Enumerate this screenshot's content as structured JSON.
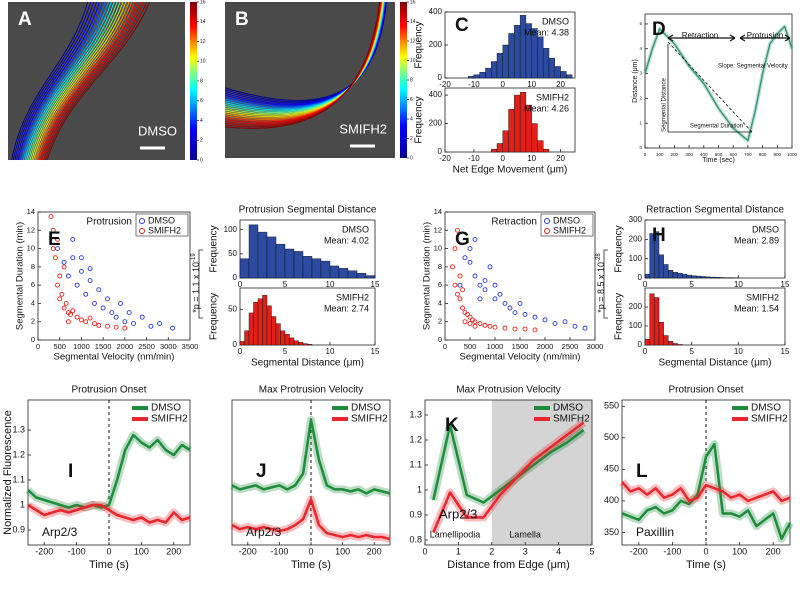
{
  "chart_data": [
    {
      "type": "image",
      "panel": "A",
      "label": "DMSO",
      "clim": [
        0,
        16
      ],
      "cticks": [
        0,
        2,
        4,
        6,
        8,
        10,
        12,
        14,
        16
      ]
    },
    {
      "type": "image",
      "panel": "B",
      "label": "SMIFH2",
      "clim": [
        0,
        16
      ],
      "cticks": [
        0,
        2,
        4,
        6,
        8,
        10,
        12,
        14,
        16
      ]
    },
    {
      "type": "histogram",
      "panel": "C",
      "name": "DMSO",
      "mean": "Mean: 4.38",
      "color": "#2b4aa0",
      "ylabel": "Frequency",
      "bins": [
        -12,
        -10,
        -8,
        -6,
        -4,
        -2,
        0,
        2,
        4,
        6,
        8,
        10,
        12,
        14,
        16,
        18,
        20,
        22,
        24
      ],
      "values": [
        10,
        20,
        35,
        60,
        100,
        150,
        200,
        270,
        320,
        380,
        330,
        300,
        250,
        180,
        120,
        70,
        40,
        20
      ],
      "xlim": [
        -20,
        25
      ],
      "xticks": [
        -20,
        -10,
        0,
        10,
        20
      ],
      "ylim": [
        0,
        400
      ],
      "yticks": [
        0,
        200,
        400
      ]
    },
    {
      "type": "histogram",
      "name": "SMIFH2",
      "mean": "Mean: 4.26",
      "color": "#e0201b",
      "ylabel": "Frequency",
      "xlabel": "Net Edge Movement (μm)",
      "bins": [
        -4,
        -2,
        0,
        2,
        4,
        6,
        8,
        10,
        12,
        14,
        16
      ],
      "values": [
        20,
        60,
        150,
        300,
        400,
        420,
        330,
        200,
        80,
        20
      ],
      "xlim": [
        -20,
        25
      ],
      "xticks": [
        -20,
        -10,
        0,
        10,
        20
      ],
      "ylim": [
        0,
        450
      ],
      "yticks": [
        0,
        200,
        400
      ]
    },
    {
      "type": "line",
      "panel": "D",
      "xlabel": "Time (sec)",
      "ylabel": "Distance (μm)",
      "x": [
        0,
        50,
        100,
        150,
        200,
        300,
        400,
        500,
        600,
        700,
        750,
        800,
        850,
        900,
        950,
        1000
      ],
      "series": [
        {
          "color": "#3a9a7a",
          "values": [
            3,
            4,
            4.8,
            4.5,
            4.2,
            3.3,
            2.6,
            1.6,
            0.8,
            0.3,
            1.5,
            3,
            4.2,
            4.6,
            4.9,
            4
          ]
        }
      ],
      "xlim": [
        0,
        1000
      ],
      "xticks": [
        0,
        100,
        200,
        300,
        400,
        500,
        600,
        700,
        800,
        900,
        1000
      ],
      "ylim": [
        0,
        5.4
      ],
      "yticks": [
        0,
        1,
        2,
        3,
        4,
        5
      ],
      "annotations": [
        "Retraction",
        "Protrusion",
        "Slope: Segmental Velocity",
        "Segmental Distance",
        "Segmental Duration"
      ]
    },
    {
      "type": "scatter",
      "panel": "E",
      "label": "Protrusion",
      "xlabel": "Segmental Velocity (nm/min)",
      "ylabel": "Segmental Duration (min)",
      "xlim": [
        0,
        3500
      ],
      "xticks": [
        0,
        500,
        1000,
        1500,
        2000,
        2500,
        3000,
        3500
      ],
      "ylim": [
        0,
        14
      ],
      "yticks": [
        0,
        2,
        4,
        6,
        8,
        10,
        12,
        14
      ],
      "series": [
        {
          "name": "DMSO",
          "color": "#2a3bd1",
          "x": [
            450,
            600,
            700,
            800,
            900,
            1000,
            1100,
            1200,
            1300,
            1400,
            1500,
            1600,
            1700,
            1800,
            1900,
            2000,
            2100,
            2200,
            2400,
            2600,
            2800,
            3100,
            800,
            1000,
            1200
          ],
          "y": [
            10,
            8.5,
            7,
            9,
            6,
            7.5,
            5,
            6.5,
            4,
            5.5,
            3.5,
            4.5,
            3,
            2.5,
            4,
            2,
            3,
            1.8,
            2.5,
            1.5,
            1.8,
            1.3,
            11,
            9,
            7.8
          ]
        },
        {
          "name": "SMIFH2",
          "color": "#e8241a",
          "x": [
            300,
            350,
            400,
            450,
            500,
            550,
            600,
            650,
            700,
            750,
            800,
            900,
            1000,
            1100,
            1200,
            1300,
            1400,
            1600,
            1800,
            2000,
            350,
            450,
            500,
            600,
            700
          ],
          "y": [
            13.5,
            12,
            9,
            6,
            4.5,
            5,
            3.5,
            4,
            3,
            2.8,
            3.2,
            2.5,
            2.2,
            2,
            2.4,
            1.8,
            1.6,
            1.5,
            1.4,
            1.3,
            10,
            11,
            7,
            8,
            2
          ]
        }
      ]
    },
    {
      "type": "histogram",
      "title": "Protrusion Segmental Distance",
      "name": "DMSO",
      "mean": "Mean: 4.02",
      "color": "#2b4aa0",
      "ylabel": "Frequency",
      "annotation": {
        "text": "*p = 1.1 x 10",
        "exp": "-19"
      },
      "bins": [
        0,
        1,
        2,
        3,
        4,
        5,
        6,
        7,
        8,
        9,
        10,
        11,
        12,
        13,
        14,
        15
      ],
      "values": [
        40,
        110,
        95,
        85,
        70,
        60,
        55,
        45,
        40,
        35,
        25,
        20,
        15,
        10,
        5
      ],
      "xlim": [
        0,
        15
      ],
      "xticks": [
        0,
        5,
        10,
        15
      ],
      "ylim": [
        0,
        120
      ],
      "yticks": [
        0,
        50,
        100
      ]
    },
    {
      "type": "histogram",
      "name": "SMIFH2",
      "mean": "Mean: 2.74",
      "color": "#e0201b",
      "ylabel": "Frequency",
      "xlabel": "Segmental Distance (μm)",
      "bins": [
        0,
        0.5,
        1,
        1.5,
        2,
        2.5,
        3,
        3.5,
        4,
        4.5,
        5,
        5.5,
        6,
        6.5,
        7,
        7.5,
        8
      ],
      "values": [
        5,
        20,
        45,
        60,
        65,
        70,
        55,
        40,
        30,
        20,
        15,
        10,
        6,
        4,
        2,
        1
      ],
      "xlim": [
        0,
        15
      ],
      "xticks": [
        0,
        5,
        10,
        15
      ],
      "ylim": [
        0,
        80
      ],
      "yticks": [
        0,
        50
      ]
    },
    {
      "type": "scatter",
      "panel": "G",
      "label": "Retraction",
      "xlabel": "Segmental Velocity (nm/min)",
      "ylabel": "Segmental Duration (min)",
      "xlim": [
        0,
        3000
      ],
      "xticks": [
        0,
        500,
        1000,
        1500,
        2000,
        2500,
        3000
      ],
      "ylim": [
        0,
        14
      ],
      "yticks": [
        0,
        2,
        4,
        6,
        8,
        10,
        12,
        14
      ],
      "series": [
        {
          "name": "DMSO",
          "color": "#2a3bd1",
          "x": [
            300,
            400,
            500,
            600,
            700,
            800,
            900,
            1000,
            1100,
            1200,
            1300,
            1400,
            1500,
            1600,
            1800,
            2000,
            2200,
            2400,
            2600,
            2800,
            500,
            600,
            800,
            1000,
            700
          ],
          "y": [
            6,
            9,
            8.5,
            7,
            6,
            5.5,
            8,
            4.5,
            5,
            4,
            3.5,
            3,
            4,
            2.8,
            2.5,
            2.2,
            1.8,
            2,
            1.5,
            1.3,
            10,
            11,
            6.5,
            6,
            4.5
          ]
        },
        {
          "name": "SMIFH2",
          "color": "#e8241a",
          "x": [
            150,
            200,
            250,
            300,
            350,
            400,
            450,
            500,
            550,
            600,
            700,
            800,
            900,
            1000,
            1200,
            1400,
            1600,
            1800,
            200,
            250,
            300,
            350,
            400,
            500,
            600
          ],
          "y": [
            8,
            6,
            5,
            4.5,
            3.5,
            3,
            2.8,
            2.5,
            2.2,
            2,
            1.8,
            1.6,
            1.5,
            1.4,
            1.3,
            1.2,
            1.2,
            1.1,
            10,
            12,
            7,
            5.5,
            2,
            1.8,
            1.5
          ]
        }
      ]
    },
    {
      "type": "histogram",
      "panel": "H",
      "title": "Retraction Segmental Distance",
      "name": "DMSO",
      "mean": "Mean: 2.89",
      "color": "#2b4aa0",
      "ylabel": "Frequency",
      "annotation": {
        "text": "*p = 8.5 x 10",
        "exp": "-28"
      },
      "bins": [
        0,
        0.5,
        1,
        1.5,
        2,
        2.5,
        3,
        3.5,
        4,
        4.5,
        5,
        5.5,
        6,
        6.5,
        7,
        7.5,
        8,
        8.5,
        9,
        9.5,
        10
      ],
      "values": [
        20,
        230,
        240,
        120,
        70,
        40,
        30,
        25,
        20,
        15,
        12,
        10,
        8,
        6,
        5,
        4,
        3,
        2,
        2,
        1
      ],
      "xlim": [
        0,
        15
      ],
      "xticks": [
        0,
        5,
        10,
        15
      ],
      "ylim": [
        0,
        300
      ],
      "yticks": [
        0,
        100,
        200,
        300
      ]
    },
    {
      "type": "histogram",
      "name": "SMIFH2",
      "mean": "Mean: 1.54",
      "color": "#e0201b",
      "ylabel": "Frequency",
      "xlabel": "Segmental Distance (μm)",
      "bins": [
        0,
        0.5,
        1,
        1.5,
        2,
        2.5,
        3,
        3.5,
        4
      ],
      "values": [
        30,
        270,
        250,
        120,
        50,
        20,
        8,
        3
      ],
      "xlim": [
        0,
        15
      ],
      "xticks": [
        0,
        5,
        10,
        15
      ],
      "ylim": [
        0,
        300
      ],
      "yticks": [
        0,
        100,
        200
      ]
    },
    {
      "type": "line",
      "panel": "I",
      "title": "Protrusion Onset",
      "label": "Arp2/3",
      "xlabel": "Time (s)",
      "ylabel": "Normalized Fluorescence",
      "vline": 0,
      "x": [
        -250,
        -225,
        -200,
        -175,
        -150,
        -125,
        -100,
        -75,
        -50,
        -25,
        0,
        25,
        50,
        75,
        100,
        125,
        150,
        175,
        200,
        225,
        250
      ],
      "xlim": [
        -250,
        250
      ],
      "xticks": [
        -200,
        -100,
        0,
        100,
        200
      ],
      "ylim": [
        0.84,
        1.42
      ],
      "yticks": [
        0.9,
        1,
        1.1,
        1.2,
        1.3
      ],
      "series": [
        {
          "name": "DMSO",
          "color": "#1e8c3a",
          "values": [
            1.06,
            1.03,
            1.02,
            1.01,
            1.0,
            0.99,
            1.0,
            0.99,
            1.0,
            0.99,
            1.0,
            1.1,
            1.22,
            1.28,
            1.25,
            1.23,
            1.26,
            1.22,
            1.2,
            1.24,
            1.22
          ]
        },
        {
          "name": "SMIFH2",
          "color": "#e8262c",
          "values": [
            1.0,
            0.98,
            0.96,
            0.97,
            0.98,
            0.97,
            0.98,
            0.99,
            1.0,
            1.0,
            0.98,
            0.96,
            0.95,
            0.94,
            0.95,
            0.93,
            0.94,
            0.93,
            0.97,
            0.94,
            0.95
          ]
        }
      ]
    },
    {
      "type": "line",
      "panel": "J",
      "title": "Max Protrusion Velocity",
      "label": "Arp2/3",
      "xlabel": "Time (s)",
      "vline": 0,
      "x": [
        -250,
        -225,
        -200,
        -175,
        -150,
        -125,
        -100,
        -75,
        -50,
        -25,
        0,
        25,
        50,
        75,
        100,
        125,
        150,
        175,
        200,
        225,
        250
      ],
      "xlim": [
        -250,
        250
      ],
      "xticks": [
        -200,
        -100,
        0,
        100,
        200
      ],
      "ylim": [
        0.82,
        1.55
      ],
      "yticks": [],
      "series": [
        {
          "name": "DMSO",
          "color": "#1e8c3a",
          "values": [
            1.12,
            1.1,
            1.11,
            1.12,
            1.1,
            1.11,
            1.12,
            1.1,
            1.12,
            1.18,
            1.45,
            1.25,
            1.12,
            1.1,
            1.1,
            1.09,
            1.1,
            1.08,
            1.1,
            1.09,
            1.08
          ]
        },
        {
          "name": "SMIFH2",
          "color": "#e8262c",
          "values": [
            0.92,
            0.9,
            0.91,
            0.9,
            0.91,
            0.9,
            0.89,
            0.9,
            0.92,
            0.95,
            1.05,
            0.92,
            0.88,
            0.87,
            0.86,
            0.87,
            0.86,
            0.87,
            0.86,
            0.86,
            0.85
          ]
        }
      ]
    },
    {
      "type": "line",
      "panel": "K",
      "title": "Max Protrusion Velocity",
      "label": "Arp2/3",
      "xlabel": "Distance from Edge (μm)",
      "shade": [
        2,
        5
      ],
      "shade_labels": [
        "Lamellipodia",
        "Lamella"
      ],
      "x": [
        0.25,
        0.75,
        1.25,
        1.75,
        2.25,
        2.75,
        3.25,
        3.75,
        4.25,
        4.75
      ],
      "xlim": [
        0,
        5
      ],
      "xticks": [
        0,
        1,
        2,
        3,
        4,
        5
      ],
      "ylim": [
        0.78,
        1.36
      ],
      "yticks": [
        0.8,
        0.9,
        1,
        1.1,
        1.2,
        1.3
      ],
      "series": [
        {
          "name": "DMSO",
          "color": "#1e8c3a",
          "values": [
            0.96,
            1.26,
            0.98,
            0.95,
            1.0,
            1.05,
            1.1,
            1.15,
            1.19,
            1.24
          ]
        },
        {
          "name": "SMIFH2",
          "color": "#e8262c",
          "values": [
            0.83,
            0.99,
            0.89,
            0.89,
            0.98,
            1.05,
            1.12,
            1.17,
            1.22,
            1.27
          ]
        }
      ]
    },
    {
      "type": "line",
      "panel": "L",
      "title": "Protrusion Onset",
      "label": "Paxillin",
      "xlabel": "Time (s)",
      "vline": 0,
      "x": [
        -250,
        -225,
        -200,
        -175,
        -150,
        -125,
        -100,
        -75,
        -50,
        -25,
        0,
        25,
        50,
        75,
        100,
        125,
        150,
        175,
        200,
        225,
        250
      ],
      "xlim": [
        -250,
        250
      ],
      "xticks": [
        -200,
        -100,
        0,
        100,
        200
      ],
      "ylim": [
        330,
        560
      ],
      "yticks": [
        350,
        400,
        450,
        500,
        550
      ],
      "series": [
        {
          "name": "DMSO",
          "color": "#1e8c3a",
          "values": [
            380,
            375,
            370,
            385,
            390,
            380,
            385,
            400,
            395,
            410,
            470,
            490,
            380,
            380,
            375,
            385,
            360,
            370,
            380,
            340,
            365
          ]
        },
        {
          "name": "SMIFH2",
          "color": "#e8262c",
          "values": [
            430,
            415,
            420,
            410,
            420,
            405,
            410,
            420,
            400,
            405,
            425,
            420,
            415,
            405,
            410,
            400,
            405,
            410,
            415,
            400,
            405
          ]
        }
      ]
    }
  ]
}
